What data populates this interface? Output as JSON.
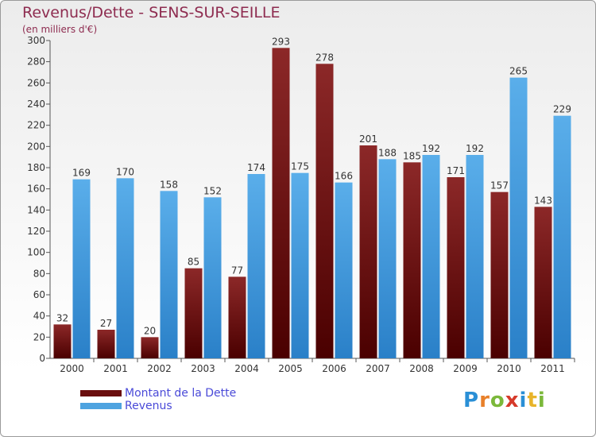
{
  "chart_data": {
    "type": "bar",
    "title": "Revenus/Dette - SENS-SUR-SEILLE",
    "subtitle": "(en milliers d'€)",
    "categories": [
      "2000",
      "2001",
      "2002",
      "2003",
      "2004",
      "2005",
      "2006",
      "2007",
      "2008",
      "2009",
      "2010",
      "2011"
    ],
    "series": [
      {
        "name": "Montant de la Dette",
        "color": "#7a1a1a",
        "values": [
          32,
          27,
          20,
          85,
          77,
          293,
          278,
          201,
          185,
          171,
          157,
          143
        ]
      },
      {
        "name": "Revenus",
        "color": "#4ea3e0",
        "values": [
          169,
          170,
          158,
          152,
          174,
          175,
          166,
          188,
          192,
          192,
          265,
          229
        ]
      }
    ],
    "ylim": [
      0,
      300
    ],
    "yticks": [
      0,
      20,
      40,
      60,
      80,
      100,
      120,
      140,
      160,
      180,
      200,
      220,
      240,
      260,
      280,
      300
    ],
    "grid": false,
    "legend_position": "bottom-left"
  },
  "logo": {
    "text": "Proxiti",
    "letters": [
      {
        "ch": "P",
        "color": "#2a8fd6"
      },
      {
        "ch": "r",
        "color": "#e8802a"
      },
      {
        "ch": "o",
        "color": "#7bb83a"
      },
      {
        "ch": "x",
        "color": "#d63a2a"
      },
      {
        "ch": "i",
        "color": "#2a8fd6"
      },
      {
        "ch": "t",
        "color": "#e8b42a"
      },
      {
        "ch": "i",
        "color": "#7bb83a"
      }
    ]
  }
}
